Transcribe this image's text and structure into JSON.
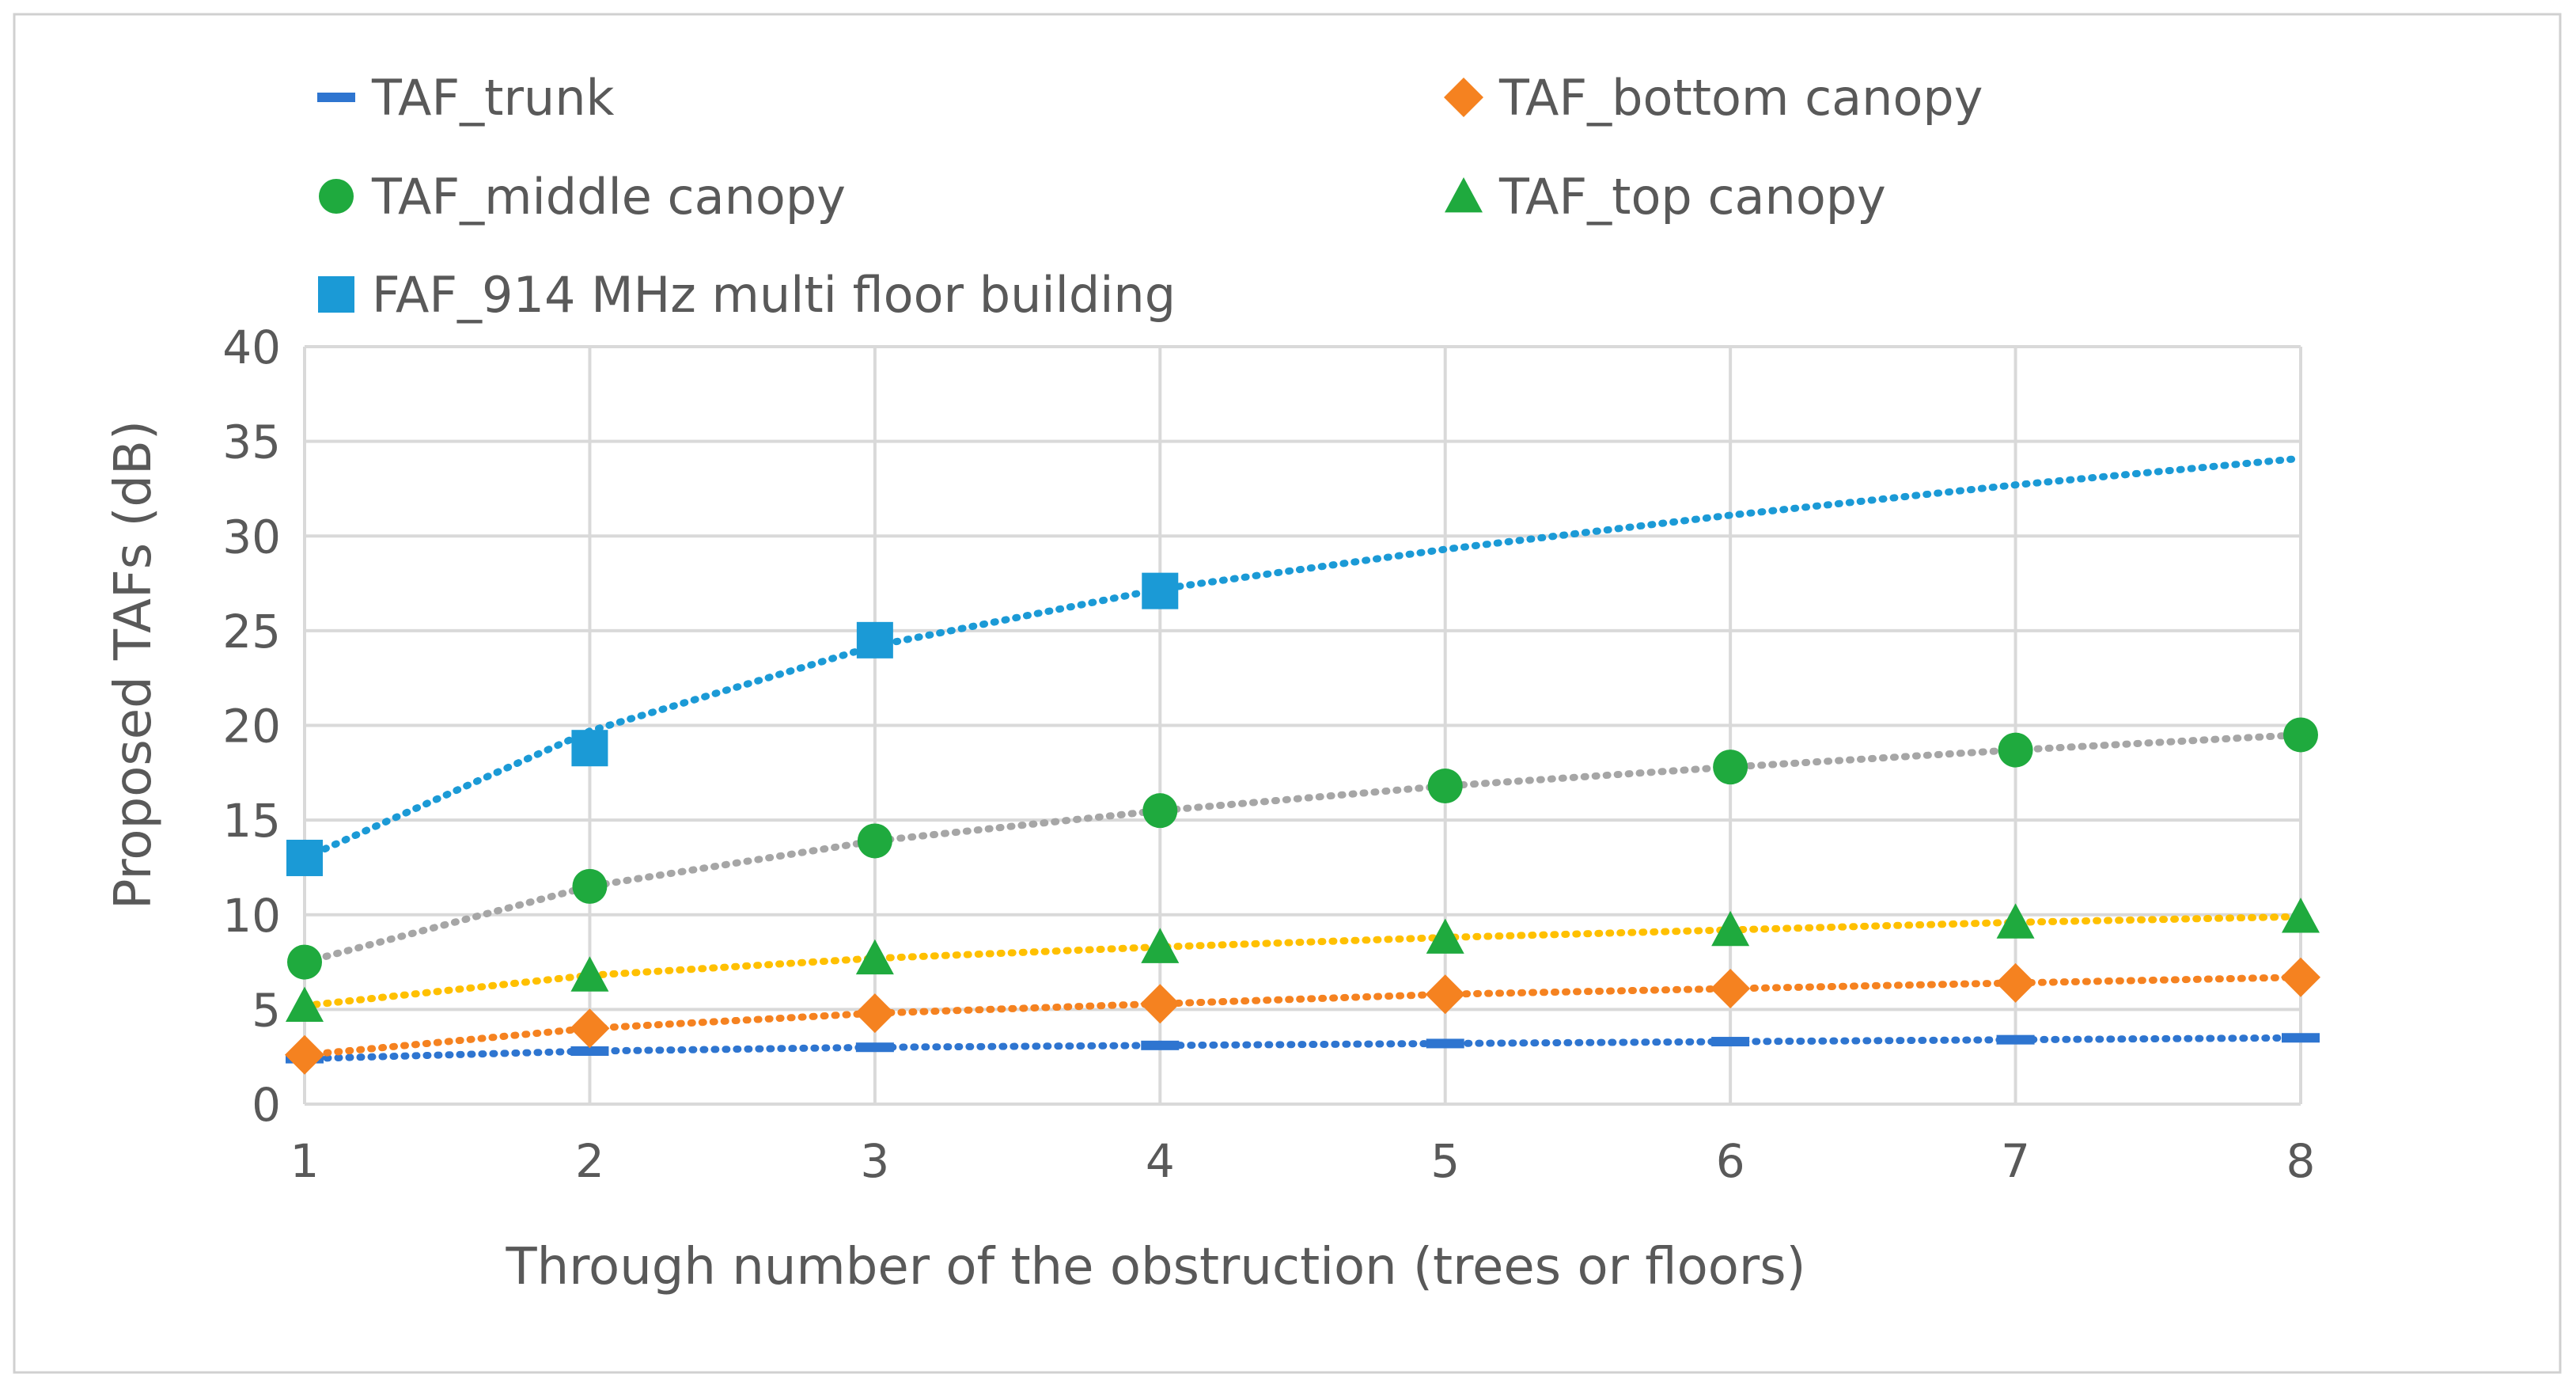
{
  "chart_data": {
    "type": "scatter",
    "title": "",
    "xlabel": "Through  number of the obstruction (trees or floors)",
    "ylabel": "Proposed TAFs (dB)",
    "x_ticks": [
      "1",
      "2",
      "3",
      "4",
      "5",
      "6",
      "7",
      "8"
    ],
    "y_ticks": [
      "0",
      "5",
      "10",
      "15",
      "20",
      "25",
      "30",
      "35",
      "40"
    ],
    "xlim": [
      1,
      8
    ],
    "ylim": [
      0,
      40
    ],
    "grid": true,
    "legend_position": "top",
    "series": [
      {
        "name": "TAF_trunk",
        "marker": "dash",
        "color": "#2E75D0",
        "trend_color": "#2E75D0",
        "x": [
          1,
          2,
          3,
          4,
          5,
          6,
          7,
          8
        ],
        "y": [
          2.4,
          2.8,
          3.0,
          3.1,
          3.2,
          3.3,
          3.4,
          3.5
        ]
      },
      {
        "name": "TAF_bottom canopy",
        "marker": "diamond",
        "color": "#F58220",
        "trend_color": "#F58220",
        "x": [
          1,
          2,
          3,
          4,
          5,
          6,
          7,
          8
        ],
        "y": [
          2.6,
          4.0,
          4.8,
          5.3,
          5.8,
          6.1,
          6.4,
          6.7
        ]
      },
      {
        "name": "TAF_middle canopy",
        "marker": "circle",
        "color": "#1FAA3E",
        "trend_color": "#A6A6A6",
        "x": [
          1,
          2,
          3,
          4,
          5,
          6,
          7,
          8
        ],
        "y": [
          7.5,
          11.5,
          13.9,
          15.5,
          16.8,
          17.8,
          18.7,
          19.5
        ]
      },
      {
        "name": "TAF_top canopy",
        "marker": "triangle",
        "color": "#1FAA3E",
        "trend_color": "#FFC000",
        "x": [
          1,
          2,
          3,
          4,
          5,
          6,
          7,
          8
        ],
        "y": [
          5.2,
          6.8,
          7.7,
          8.3,
          8.8,
          9.2,
          9.6,
          9.9
        ]
      },
      {
        "name": "FAF_914 MHz multi floor building",
        "marker": "square",
        "color": "#1B9AD6",
        "trend_color": "#1B9AD6",
        "x": [
          1,
          2,
          3,
          4
        ],
        "y": [
          13.0,
          18.8,
          24.5,
          27.1
        ],
        "trend_y": [
          13.0,
          19.7,
          24.2,
          27.2,
          29.3,
          31.1,
          32.7,
          34.1
        ]
      }
    ]
  }
}
